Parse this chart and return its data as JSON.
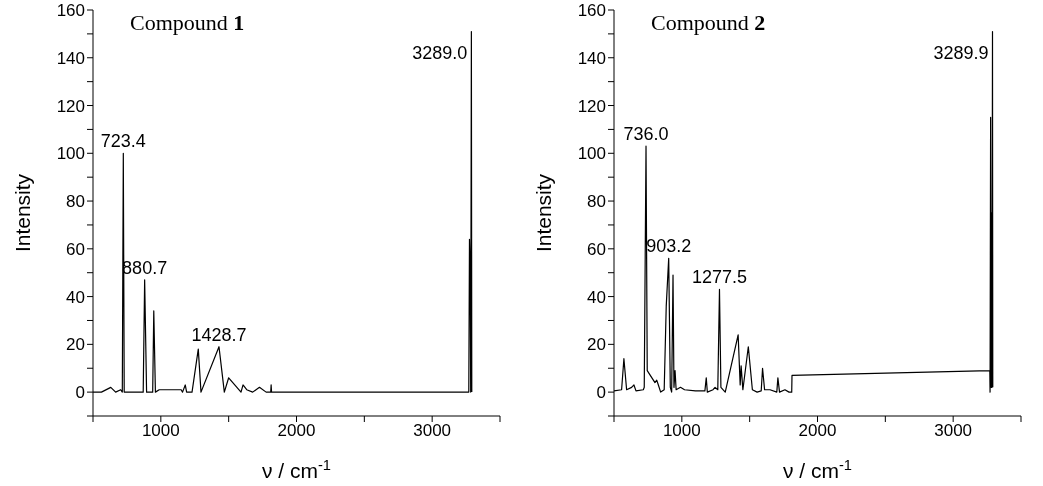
{
  "chart_data": [
    {
      "type": "line",
      "title": "Compound 1",
      "xlabel": "ν / cm$^{-1}$",
      "ylabel": "Intensity",
      "xlim": [
        500,
        3500
      ],
      "ylim": [
        -10,
        160
      ],
      "xticks": [
        {
          "value": 500,
          "label": null
        },
        1000,
        {
          "value": 1500,
          "label": null
        },
        2000,
        {
          "value": 2500,
          "label": null
        },
        3000,
        {
          "value": 3500,
          "label": null
        }
      ],
      "yticks": [
        {
          "value": -10,
          "label": null
        },
        0,
        {
          "value": 10,
          "label": null
        },
        20,
        {
          "value": 30,
          "label": null
        },
        40,
        {
          "value": 50,
          "label": null
        },
        60,
        {
          "value": 70,
          "label": null
        },
        80,
        {
          "value": 90,
          "label": null
        },
        100,
        {
          "value": 110,
          "label": null
        },
        120,
        {
          "value": 130,
          "label": null
        },
        140,
        {
          "value": 150,
          "label": null
        },
        160
      ],
      "grid": false,
      "legend": false,
      "series": [
        {
          "color": "#000000",
          "x": [
            500,
            562,
            631,
            667,
            704,
            716,
            723.4,
            730,
            870,
            880.7,
            895,
            940,
            948,
            960,
            988,
            1150,
            1160,
            1180,
            1190,
            1230,
            1276,
            1296,
            1428.7,
            1468,
            1500,
            1591,
            1606,
            1633,
            1677,
            1727,
            1776,
            1810,
            1813,
            1816,
            3270,
            3275,
            3280,
            3284,
            3289.0,
            3292
          ],
          "values": [
            0,
            0,
            2,
            0,
            1,
            0,
            100,
            0,
            0,
            47,
            0,
            0,
            34,
            0,
            1,
            1,
            0,
            3,
            0,
            0,
            18,
            0,
            19,
            0,
            6,
            0,
            3,
            1,
            0,
            2,
            0,
            0,
            3,
            0,
            0,
            64,
            52,
            0,
            151,
            0
          ]
        }
      ],
      "annotations": [
        {
          "text": "723.4",
          "x": 723.4,
          "y": 100
        },
        {
          "text": "880.7",
          "x": 880.7,
          "y": 47
        },
        {
          "text": "1428.7",
          "x": 1428.7,
          "y": 19
        },
        {
          "text": "3289.0",
          "x": 3289.0,
          "y": 151
        }
      ]
    },
    {
      "type": "line",
      "title": "Compound 2",
      "xlabel": "ν / cm$^{-1}$",
      "ylabel": "Intensity",
      "xlim": [
        500,
        3500
      ],
      "ylim": [
        -10,
        160
      ],
      "xticks": [
        {
          "value": 500,
          "label": null
        },
        1000,
        {
          "value": 1500,
          "label": null
        },
        2000,
        {
          "value": 2500,
          "label": null
        },
        3000,
        {
          "value": 3500,
          "label": null
        }
      ],
      "yticks": [
        {
          "value": -10,
          "label": null
        },
        0,
        {
          "value": 10,
          "label": null
        },
        20,
        {
          "value": 30,
          "label": null
        },
        40,
        {
          "value": 50,
          "label": null
        },
        60,
        {
          "value": 70,
          "label": null
        },
        80,
        {
          "value": 90,
          "label": null
        },
        100,
        {
          "value": 110,
          "label": null
        },
        120,
        {
          "value": 130,
          "label": null
        },
        140,
        {
          "value": 150,
          "label": null
        },
        160
      ],
      "grid": false,
      "legend": false,
      "series": [
        {
          "color": "#000000",
          "x": [
            500,
            556,
            573,
            593,
            630,
            647,
            662,
            716,
            723,
            736.0,
            745,
            802,
            815,
            827,
            844,
            870,
            885,
            903.2,
            915,
            925,
            935,
            942,
            950,
            958,
            990,
            1020,
            1100,
            1170,
            1180,
            1188,
            1230,
            1245,
            1265,
            1277.5,
            1288,
            1320,
            1415,
            1430,
            1437,
            1450,
            1490,
            1520,
            1555,
            1585,
            1595,
            1610,
            1650,
            1700,
            1708,
            1720,
            1760,
            1790,
            1810,
            1812,
            3270,
            3272,
            3276,
            3280,
            3283,
            3286,
            3289.9,
            3292
          ],
          "values": [
            0.5,
            1,
            14,
            1,
            2,
            3,
            0.5,
            1,
            2,
            103,
            9,
            4,
            5,
            3,
            0,
            1,
            36,
            56,
            2,
            0,
            49,
            2,
            9,
            1,
            2,
            1,
            0.5,
            0.5,
            6,
            0,
            1,
            2,
            1,
            43,
            2,
            0,
            24,
            3,
            11,
            1,
            19,
            1,
            0,
            0.5,
            10,
            1,
            1,
            0,
            6,
            0,
            1,
            0,
            0,
            7,
            9,
            0,
            115,
            2,
            75,
            2,
            151,
            2
          ]
        }
      ],
      "annotations": [
        {
          "text": "736.0",
          "x": 736.0,
          "y": 103
        },
        {
          "text": "903.2",
          "x": 903.2,
          "y": 56
        },
        {
          "text": "1277.5",
          "x": 1277.5,
          "y": 43
        },
        {
          "text": "3289.9",
          "x": 3289.9,
          "y": 151
        }
      ]
    }
  ]
}
